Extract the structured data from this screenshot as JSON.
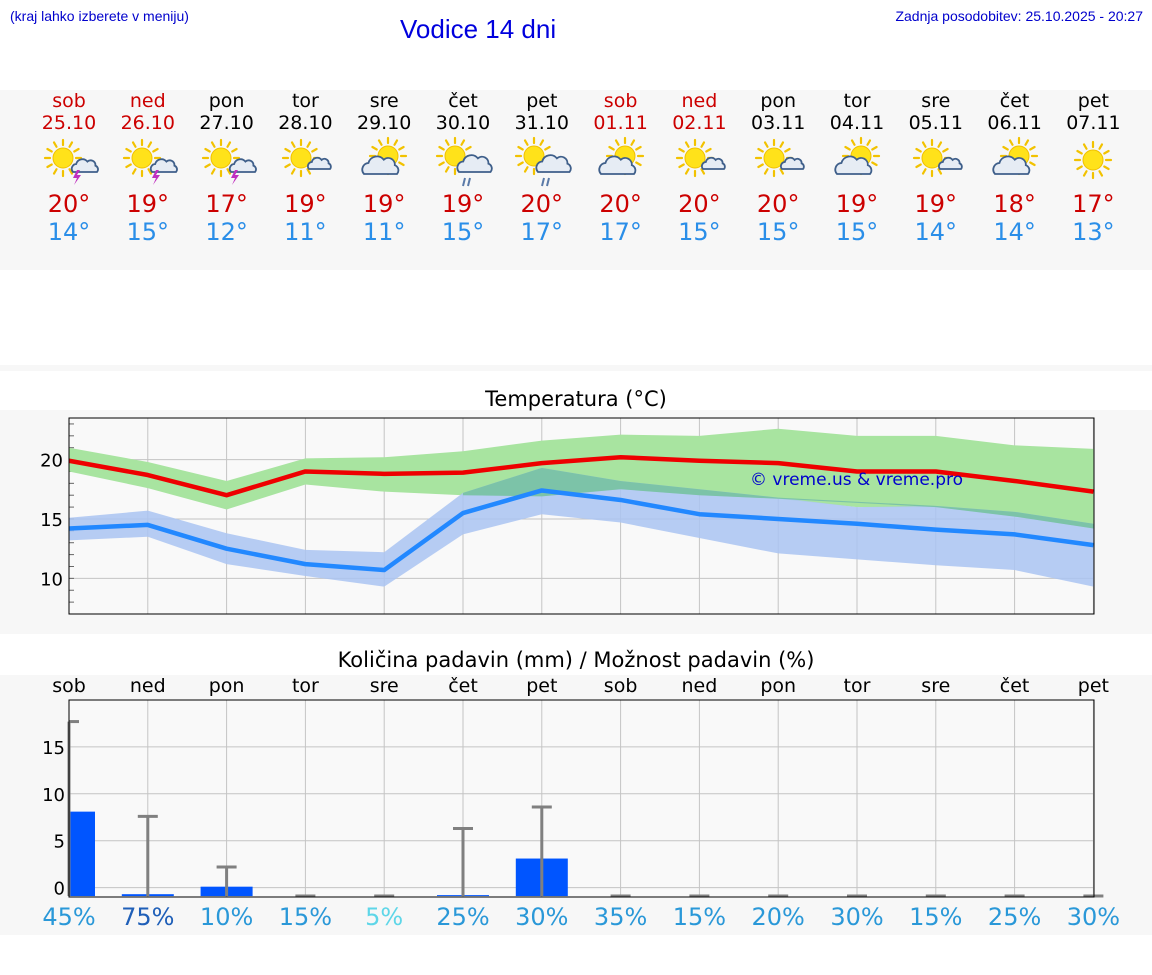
{
  "header": {
    "hint": "(kraj lahko izberete v meniju)",
    "title": "Vodice 14 dni",
    "updated": "Zadnja posodobitev: 25.10.2025 - 20:27"
  },
  "colors": {
    "max_temp": "#ee0000",
    "min_temp": "#2288ff",
    "max_band": "#a8e4a0",
    "min_band": "#aac4f2",
    "overlap_band": "#7cc3a8",
    "rain_bar": "#0055ff",
    "weekend": "#cc0000",
    "link": "#0000cc"
  },
  "days": [
    {
      "name": "sob",
      "date": "25.10",
      "weekend": true,
      "icon": "sun-cloud-thunder-icon",
      "max": "20°",
      "min": "14°"
    },
    {
      "name": "ned",
      "date": "26.10",
      "weekend": true,
      "icon": "sun-cloud-thunder-icon",
      "max": "19°",
      "min": "15°"
    },
    {
      "name": "pon",
      "date": "27.10",
      "weekend": false,
      "icon": "sun-cloud-thunder-icon",
      "max": "17°",
      "min": "12°"
    },
    {
      "name": "tor",
      "date": "28.10",
      "weekend": false,
      "icon": "sun-small-cloud-icon",
      "max": "19°",
      "min": "11°"
    },
    {
      "name": "sre",
      "date": "29.10",
      "weekend": false,
      "icon": "sun-cloud-icon",
      "max": "19°",
      "min": "11°"
    },
    {
      "name": "čet",
      "date": "30.10",
      "weekend": false,
      "icon": "sun-cloud-rain-icon",
      "max": "19°",
      "min": "15°"
    },
    {
      "name": "pet",
      "date": "31.10",
      "weekend": false,
      "icon": "sun-cloud-rain-icon",
      "max": "20°",
      "min": "17°"
    },
    {
      "name": "sob",
      "date": "01.11",
      "weekend": true,
      "icon": "sun-cloud-icon",
      "max": "20°",
      "min": "17°"
    },
    {
      "name": "ned",
      "date": "02.11",
      "weekend": true,
      "icon": "sun-small-cloud-icon",
      "max": "20°",
      "min": "15°"
    },
    {
      "name": "pon",
      "date": "03.11",
      "weekend": false,
      "icon": "sun-small-cloud-icon",
      "max": "20°",
      "min": "15°"
    },
    {
      "name": "tor",
      "date": "04.11",
      "weekend": false,
      "icon": "sun-cloud-icon",
      "max": "19°",
      "min": "15°"
    },
    {
      "name": "sre",
      "date": "05.11",
      "weekend": false,
      "icon": "sun-small-cloud-icon",
      "max": "19°",
      "min": "14°"
    },
    {
      "name": "čet",
      "date": "06.11",
      "weekend": false,
      "icon": "sun-cloud-icon",
      "max": "18°",
      "min": "14°"
    },
    {
      "name": "pet",
      "date": "07.11",
      "weekend": false,
      "icon": "sun-icon",
      "max": "17°",
      "min": "13°"
    }
  ],
  "chart_data": [
    {
      "type": "line",
      "title": "Temperatura (°C)",
      "watermark": "© vreme.us & vreme.pro",
      "ylim": [
        7,
        23.5
      ],
      "yticks": [
        10,
        15,
        20
      ],
      "grid": true,
      "x": [
        "sob",
        "ned",
        "pon",
        "tor",
        "sre",
        "čet",
        "pet",
        "sob",
        "ned",
        "pon",
        "tor",
        "sre",
        "čet",
        "pet"
      ],
      "series": [
        {
          "values": [
            19.9,
            18.7,
            17.0,
            19.0,
            18.8,
            18.9,
            19.7,
            20.2,
            19.9,
            19.7,
            19.0,
            19.0,
            18.2,
            17.3
          ],
          "band_low": [
            19.0,
            17.6,
            15.8,
            17.9,
            17.3,
            17.0,
            16.9,
            17.5,
            17.0,
            16.7,
            16.0,
            16.0,
            15.2,
            14.2
          ],
          "band_high": [
            21.0,
            19.8,
            18.2,
            20.1,
            20.2,
            20.7,
            21.6,
            22.1,
            22.0,
            22.6,
            22.0,
            22.0,
            21.2,
            20.9
          ]
        },
        {
          "values": [
            14.2,
            14.5,
            12.5,
            11.2,
            10.7,
            15.5,
            17.4,
            16.6,
            15.4,
            15.0,
            14.6,
            14.1,
            13.7,
            12.8
          ],
          "band_low": [
            13.2,
            13.5,
            11.2,
            10.2,
            9.3,
            13.7,
            15.4,
            14.7,
            13.4,
            12.1,
            11.6,
            11.1,
            10.7,
            9.3
          ],
          "band_high": [
            15.1,
            15.7,
            13.8,
            12.4,
            12.2,
            17.2,
            19.3,
            18.2,
            17.5,
            16.8,
            16.0,
            16.1,
            15.6,
            14.6
          ]
        }
      ]
    },
    {
      "type": "bar",
      "title": "Količina padavin (mm) / Možnost padavin (%)",
      "ylim": [
        -1,
        20
      ],
      "yticks": [
        0,
        5,
        10,
        15
      ],
      "grid": true,
      "categories": [
        "sob",
        "ned",
        "pon",
        "tor",
        "sre",
        "čet",
        "pet",
        "sob",
        "ned",
        "pon",
        "tor",
        "sre",
        "čet",
        "pet"
      ],
      "values": [
        9.0,
        0.2,
        1.0,
        0,
        0,
        0.1,
        4.0,
        0,
        0,
        0,
        0,
        0,
        0,
        0
      ],
      "error_high": [
        18.6,
        8.5,
        3.1,
        0,
        0,
        7.2,
        9.5,
        0,
        0,
        0,
        0,
        0,
        0,
        0
      ],
      "probability": [
        "45%",
        "75%",
        "10%",
        "15%",
        "5%",
        "25%",
        "30%",
        "35%",
        "15%",
        "20%",
        "30%",
        "15%",
        "25%",
        "30%"
      ],
      "probability_colors": [
        "#2a98d8",
        "#1f5fb8",
        "#2a98d8",
        "#2a98d8",
        "#5ed6e8",
        "#2a98d8",
        "#2a98d8",
        "#2a98d8",
        "#2a98d8",
        "#2a98d8",
        "#2a98d8",
        "#2a98d8",
        "#2a98d8",
        "#2a98d8"
      ]
    }
  ]
}
